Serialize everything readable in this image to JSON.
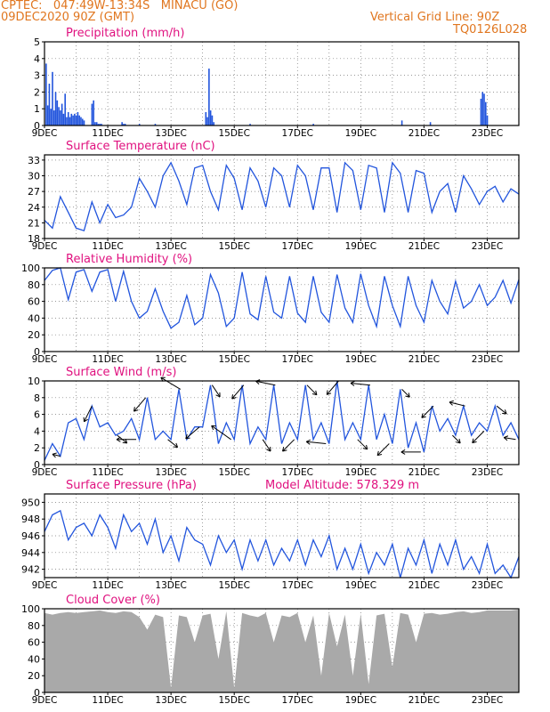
{
  "header": {
    "line1": "CPTEC:   047:49W-13:34S   MINACU (GO)",
    "line2": "09DEC2020 90Z (GMT)",
    "grid_note": "Vertical Grid Line: 90Z",
    "run_id": "TQ0126L028"
  },
  "x_ticks": [
    "9DEC",
    "11DEC",
    "13DEC",
    "15DEC",
    "17DEC",
    "19DEC",
    "21DEC",
    "23DEC"
  ],
  "x_tick_days": [
    0,
    2,
    4,
    6,
    8,
    10,
    12,
    14
  ],
  "colors": {
    "line": "#2255dd",
    "title": "#e0117f",
    "header": "#e0761f",
    "cloud": "#a9a9a9",
    "arrow": "#000000"
  },
  "chart_data": [
    {
      "type": "bar",
      "title": "Precipitation (mm/h)",
      "xrange_days": [
        0,
        15
      ],
      "ylim": [
        0,
        5
      ],
      "yticks": [
        0,
        1,
        2,
        3,
        4,
        5
      ],
      "grid": true,
      "x": [
        0.05,
        0.1,
        0.15,
        0.2,
        0.25,
        0.3,
        0.35,
        0.4,
        0.45,
        0.5,
        0.55,
        0.6,
        0.65,
        0.7,
        0.75,
        0.8,
        0.85,
        0.9,
        0.95,
        1.0,
        1.05,
        1.1,
        1.15,
        1.2,
        1.25,
        1.5,
        1.55,
        1.6,
        1.65,
        1.7,
        1.75,
        1.8,
        2.45,
        2.5,
        2.55,
        3.0,
        3.5,
        5.1,
        5.15,
        5.2,
        5.25,
        5.3,
        5.35,
        6.5,
        8.5,
        11.3,
        12.2,
        13.8,
        13.85,
        13.9,
        13.95,
        14.0
      ],
      "values": [
        3.7,
        1.2,
        2.5,
        1.0,
        3.2,
        0.9,
        2.0,
        1.5,
        1.1,
        0.9,
        1.3,
        0.7,
        1.9,
        0.5,
        0.8,
        0.5,
        0.7,
        0.6,
        0.7,
        0.6,
        0.8,
        0.6,
        0.5,
        0.4,
        0.3,
        1.3,
        1.5,
        0.2,
        0.2,
        0.1,
        0.1,
        0.1,
        0.2,
        0.1,
        0.1,
        0.1,
        0.1,
        0.8,
        0.5,
        3.4,
        0.9,
        0.6,
        0.2,
        0.1,
        0.1,
        0.3,
        0.2,
        1.6,
        2.0,
        1.9,
        1.4,
        0.6
      ]
    },
    {
      "type": "line",
      "title": "Surface Temperature (nC)",
      "xrange_days": [
        0,
        15
      ],
      "ylim": [
        18,
        34
      ],
      "yticks": [
        18,
        21,
        24,
        27,
        30,
        33
      ],
      "grid": true,
      "series": [
        {
          "x": [
            0,
            0.25,
            0.5,
            0.75,
            1.0,
            1.25,
            1.5,
            1.75,
            2.0,
            2.25,
            2.5,
            2.75,
            3.0,
            3.25,
            3.5,
            3.75,
            4.0,
            4.25,
            4.5,
            4.75,
            5.0,
            5.25,
            5.5,
            5.75,
            6.0,
            6.25,
            6.5,
            6.75,
            7.0,
            7.25,
            7.5,
            7.75,
            8.0,
            8.25,
            8.5,
            8.75,
            9.0,
            9.25,
            9.5,
            9.75,
            10.0,
            10.25,
            10.5,
            10.75,
            11.0,
            11.25,
            11.5,
            11.75,
            12.0,
            12.25,
            12.5,
            12.75,
            13.0,
            13.25,
            13.5,
            13.75,
            14.0,
            14.25,
            14.5,
            14.75,
            15.0
          ],
          "values": [
            21.5,
            20.0,
            26.0,
            23.0,
            20.0,
            19.5,
            25.0,
            21.0,
            24.5,
            22.0,
            22.5,
            24.0,
            29.5,
            27.0,
            24.0,
            30.0,
            32.5,
            29.0,
            24.5,
            31.5,
            32.0,
            27.0,
            23.5,
            32.0,
            29.5,
            23.5,
            31.5,
            29.0,
            24.0,
            31.5,
            30.0,
            24.0,
            32.0,
            30.0,
            23.5,
            31.5,
            31.5,
            23.0,
            32.5,
            31.0,
            23.5,
            32.0,
            31.5,
            23.0,
            32.5,
            30.5,
            23.0,
            31.0,
            30.5,
            23.0,
            27.0,
            28.5,
            23.0,
            30.0,
            27.5,
            24.5,
            27.0,
            28.0,
            25.0,
            27.5,
            26.5
          ]
        }
      ]
    },
    {
      "type": "line",
      "title": "Relative Humidity (%)",
      "xrange_days": [
        0,
        15
      ],
      "ylim": [
        0,
        100
      ],
      "yticks": [
        0,
        20,
        40,
        60,
        80,
        100
      ],
      "grid": true,
      "series": [
        {
          "x": [
            0,
            0.25,
            0.5,
            0.75,
            1.0,
            1.25,
            1.5,
            1.75,
            2.0,
            2.25,
            2.5,
            2.75,
            3.0,
            3.25,
            3.5,
            3.75,
            4.0,
            4.25,
            4.5,
            4.75,
            5.0,
            5.25,
            5.5,
            5.75,
            6.0,
            6.25,
            6.5,
            6.75,
            7.0,
            7.25,
            7.5,
            7.75,
            8.0,
            8.25,
            8.5,
            8.75,
            9.0,
            9.25,
            9.5,
            9.75,
            10.0,
            10.25,
            10.5,
            10.75,
            11.0,
            11.25,
            11.5,
            11.75,
            12.0,
            12.25,
            12.5,
            12.75,
            13.0,
            13.25,
            13.5,
            13.75,
            14.0,
            14.25,
            14.5,
            14.75,
            15.0
          ],
          "values": [
            85,
            97,
            100,
            62,
            95,
            98,
            72,
            95,
            98,
            60,
            96,
            60,
            40,
            48,
            75,
            48,
            28,
            35,
            67,
            32,
            40,
            92,
            70,
            30,
            40,
            95,
            45,
            38,
            90,
            47,
            40,
            90,
            46,
            35,
            90,
            47,
            35,
            92,
            52,
            35,
            93,
            55,
            30,
            90,
            55,
            30,
            90,
            55,
            35,
            85,
            60,
            45,
            84,
            52,
            60,
            80,
            55,
            65,
            85,
            58,
            86
          ]
        }
      ]
    },
    {
      "type": "line",
      "title": "Surface Wind (m/s)",
      "xrange_days": [
        0,
        15
      ],
      "ylim": [
        0,
        10
      ],
      "yticks": [
        0,
        2,
        4,
        6,
        8,
        10
      ],
      "grid": true,
      "series": [
        {
          "x": [
            0,
            0.25,
            0.5,
            0.75,
            1.0,
            1.25,
            1.5,
            1.75,
            2.0,
            2.25,
            2.5,
            2.75,
            3.0,
            3.25,
            3.5,
            3.75,
            4.0,
            4.25,
            4.5,
            4.75,
            5.0,
            5.25,
            5.5,
            5.75,
            6.0,
            6.25,
            6.5,
            6.75,
            7.0,
            7.25,
            7.5,
            7.75,
            8.0,
            8.25,
            8.5,
            8.75,
            9.0,
            9.25,
            9.5,
            9.75,
            10.0,
            10.25,
            10.5,
            10.75,
            11.0,
            11.25,
            11.5,
            11.75,
            12.0,
            12.25,
            12.5,
            12.75,
            13.0,
            13.25,
            13.5,
            13.75,
            14.0,
            14.25,
            14.5,
            14.75,
            15.0
          ],
          "values": [
            0.5,
            2.5,
            1.0,
            5.0,
            5.5,
            3.0,
            7.0,
            4.5,
            5.0,
            3.5,
            4.0,
            5.5,
            3.0,
            8.0,
            3.0,
            4.0,
            3.0,
            9.0,
            3.0,
            4.5,
            4.5,
            9.5,
            2.5,
            5.0,
            3.0,
            9.5,
            2.5,
            4.5,
            3.0,
            9.5,
            2.5,
            5.0,
            3.0,
            9.5,
            3.0,
            5.0,
            2.5,
            10.0,
            3.0,
            5.0,
            3.0,
            9.5,
            3.0,
            6.0,
            2.5,
            9.0,
            2.0,
            5.0,
            1.5,
            7.0,
            4.0,
            5.5,
            3.5,
            7.0,
            3.5,
            5.0,
            4.0,
            7.0,
            3.5,
            5.0,
            3.0
          ]
        }
      ],
      "wind_vectors": {
        "x": [
          0.5,
          1.5,
          2.3,
          2.9,
          3.2,
          3.9,
          4.3,
          4.9,
          5.3,
          5.9,
          6.3,
          6.9,
          7.3,
          7.9,
          8.3,
          8.9,
          9.3,
          9.9,
          10.3,
          10.9,
          11.3,
          11.9,
          12.3,
          12.9,
          13.3,
          13.9,
          14.3,
          14.9
        ],
        "u": [
          -0.4,
          -0.4,
          0.5,
          -1,
          -0.6,
          0.5,
          -1,
          -0.7,
          0.4,
          -1,
          -0.6,
          0.4,
          -1,
          -0.6,
          0.5,
          -1,
          -0.6,
          0.5,
          -1,
          -0.6,
          0.4,
          -1,
          -0.6,
          0.4,
          -0.8,
          -0.6,
          0.5,
          -0.6
        ],
        "v": [
          0.1,
          -0.8,
          -0.4,
          0,
          -0.7,
          -0.4,
          0.6,
          -0.6,
          -0.6,
          0.7,
          -0.7,
          -0.6,
          0.2,
          -0.6,
          -0.5,
          0.1,
          -0.7,
          -0.5,
          0.1,
          -0.6,
          -0.4,
          0,
          -0.6,
          -0.4,
          0.2,
          -0.6,
          -0.4,
          0.1
        ]
      }
    },
    {
      "type": "line",
      "title": "Surface Pressure (hPa)",
      "subtitle": "Model Altitude: 578.329  m",
      "xrange_days": [
        0,
        15
      ],
      "ylim": [
        941,
        951
      ],
      "yticks": [
        942,
        944,
        946,
        948,
        950
      ],
      "grid": true,
      "series": [
        {
          "x": [
            0,
            0.25,
            0.5,
            0.75,
            1.0,
            1.25,
            1.5,
            1.75,
            2.0,
            2.25,
            2.5,
            2.75,
            3.0,
            3.25,
            3.5,
            3.75,
            4.0,
            4.25,
            4.5,
            4.75,
            5.0,
            5.25,
            5.5,
            5.75,
            6.0,
            6.25,
            6.5,
            6.75,
            7.0,
            7.25,
            7.5,
            7.75,
            8.0,
            8.25,
            8.5,
            8.75,
            9.0,
            9.25,
            9.5,
            9.75,
            10.0,
            10.25,
            10.5,
            10.75,
            11.0,
            11.25,
            11.5,
            11.75,
            12.0,
            12.25,
            12.5,
            12.75,
            13.0,
            13.25,
            13.5,
            13.75,
            14.0,
            14.25,
            14.5,
            14.75,
            15.0
          ],
          "values": [
            946.5,
            948.5,
            949.0,
            945.5,
            947.0,
            947.5,
            946.0,
            948.5,
            947.0,
            944.5,
            948.5,
            946.5,
            947.5,
            945.0,
            948.0,
            944.0,
            946.0,
            943.0,
            947.0,
            945.5,
            945.0,
            942.5,
            946.0,
            944.0,
            945.5,
            942.0,
            945.5,
            943.0,
            945.5,
            942.5,
            944.5,
            943.0,
            945.5,
            942.5,
            945.5,
            943.5,
            946.0,
            942.0,
            944.5,
            942.0,
            945.0,
            941.5,
            944.0,
            942.5,
            945.0,
            941.0,
            944.5,
            942.5,
            945.5,
            941.5,
            945.0,
            942.5,
            945.5,
            942.0,
            943.5,
            941.5,
            945.0,
            941.5,
            942.5,
            941.0,
            943.5
          ]
        }
      ]
    },
    {
      "type": "area",
      "title": "Cloud Cover (%)",
      "xrange_days": [
        0,
        15
      ],
      "ylim": [
        0,
        100
      ],
      "yticks": [
        0,
        20,
        40,
        60,
        80,
        100
      ],
      "grid": true,
      "series": [
        {
          "x": [
            0,
            0.25,
            0.5,
            0.75,
            1.0,
            1.25,
            1.5,
            1.75,
            2.0,
            2.25,
            2.5,
            2.75,
            3.0,
            3.25,
            3.5,
            3.75,
            4.0,
            4.25,
            4.5,
            4.75,
            5.0,
            5.25,
            5.5,
            5.75,
            6.0,
            6.25,
            6.5,
            6.75,
            7.0,
            7.25,
            7.5,
            7.75,
            8.0,
            8.25,
            8.5,
            8.75,
            9.0,
            9.25,
            9.5,
            9.75,
            10.0,
            10.25,
            10.5,
            10.75,
            11.0,
            11.25,
            11.5,
            11.75,
            12.0,
            12.25,
            12.5,
            12.75,
            13.0,
            13.25,
            13.5,
            13.75,
            14.0,
            14.25,
            14.5,
            14.75,
            15.0
          ],
          "values": [
            95,
            93,
            95,
            96,
            95,
            96,
            97,
            98,
            96,
            95,
            97,
            96,
            90,
            75,
            93,
            90,
            5,
            92,
            90,
            60,
            92,
            94,
            40,
            97,
            5,
            95,
            92,
            90,
            95,
            60,
            92,
            90,
            95,
            60,
            92,
            20,
            95,
            55,
            93,
            20,
            94,
            10,
            92,
            94,
            30,
            95,
            93,
            60,
            94,
            95,
            93,
            94,
            96,
            97,
            95,
            96,
            98,
            98,
            98,
            98,
            99
          ]
        }
      ]
    }
  ]
}
